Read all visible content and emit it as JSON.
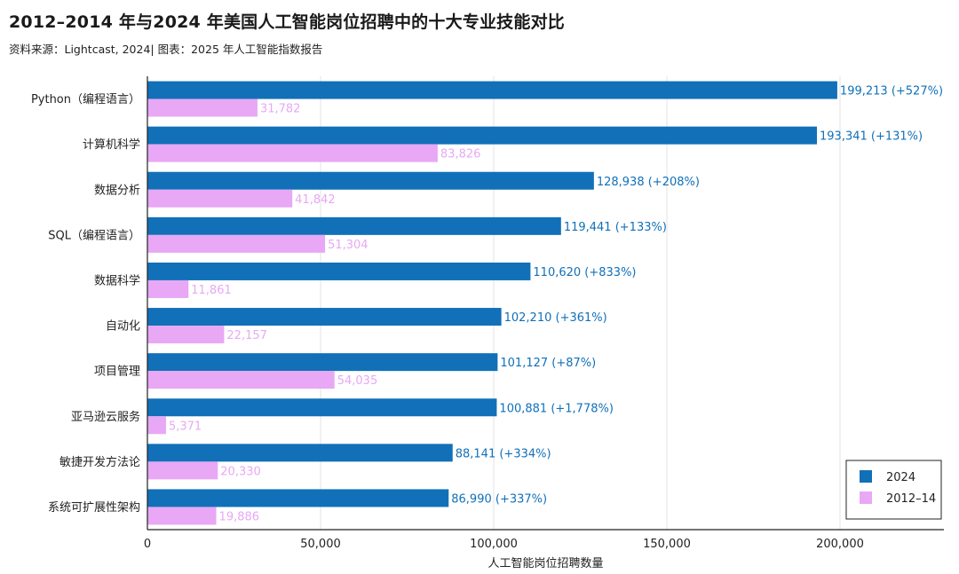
{
  "title": "2012–2014 年与2024 年美国人工智能岗位招聘中的十大专业技能对比",
  "subtitle": "资料来源：Lightcast, 2024| 图表：2025 年人工智能指数报告",
  "chart_data": {
    "type": "bar",
    "orientation": "horizontal",
    "categories": [
      "Python（编程语言）",
      "计算机科学",
      "数据分析",
      "SQL（编程语言）",
      "数据科学",
      "自动化",
      "项目管理",
      "亚马逊云服务",
      "敏捷开发方法论",
      "系统可扩展性架构"
    ],
    "series": [
      {
        "name": "2024",
        "color": "#1170b8",
        "values": [
          199213,
          193341,
          128938,
          119441,
          110620,
          102210,
          101127,
          100881,
          88141,
          86990
        ],
        "labels": [
          "199,213 (+527%)",
          "193,341 (+131%)",
          "128,938 (+208%)",
          "119,441 (+133%)",
          "110,620 (+833%)",
          "102,210 (+361%)",
          "101,127 (+87%)",
          "100,881 (+1,778%)",
          "88,141 (+334%)",
          "86,990 (+337%)"
        ]
      },
      {
        "name": "2012–14",
        "color": "#e8a8f5",
        "values": [
          31782,
          83826,
          41842,
          51304,
          11861,
          22157,
          54035,
          5371,
          20330,
          19886
        ],
        "labels": [
          "31,782",
          "83,826",
          "41,842",
          "51,304",
          "11,861",
          "22,157",
          "54,035",
          "5,371",
          "20,330",
          "19,886"
        ]
      }
    ],
    "xlabel": "人工智能岗位招聘数量",
    "xlim": [
      0,
      230000
    ],
    "xticks": [
      0,
      50000,
      100000,
      150000,
      200000
    ],
    "xtick_labels": [
      "0",
      "50,000",
      "100,000",
      "150,000",
      "200,000"
    ],
    "legend_position": "bottom-right",
    "grid": "vertical"
  }
}
